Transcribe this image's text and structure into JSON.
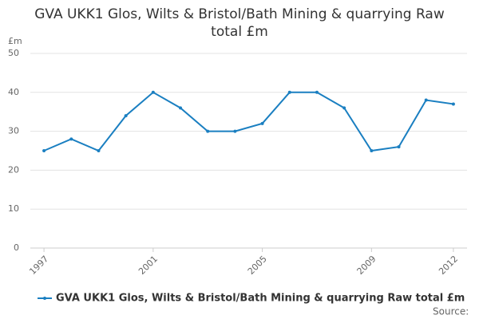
{
  "chart_data": {
    "type": "line",
    "title": "GVA UKK1 Glos, Wilts & Bristol/Bath Mining & quarrying Raw total £m",
    "y_label": "£m",
    "x": [
      1997,
      1998,
      1999,
      2000,
      2001,
      2002,
      2003,
      2004,
      2005,
      2006,
      2007,
      2008,
      2009,
      2010,
      2011,
      2012
    ],
    "series": [
      {
        "name": "GVA UKK1 Glos, Wilts & Bristol/Bath Mining & quarrying Raw total £m",
        "color": "#1a7fc1",
        "values": [
          25,
          28,
          25,
          34,
          40,
          36,
          30,
          30,
          32,
          40,
          40,
          36,
          25,
          26,
          38,
          37
        ]
      }
    ],
    "xlim": [
      1996.5,
      2012.5
    ],
    "xticks": [
      1997,
      2001,
      2005,
      2009,
      2012
    ],
    "ylim": [
      0,
      50
    ],
    "yticks": [
      0,
      10,
      20,
      30,
      40,
      50
    ],
    "grid": true,
    "legend": "bottom",
    "source": "Source:"
  }
}
